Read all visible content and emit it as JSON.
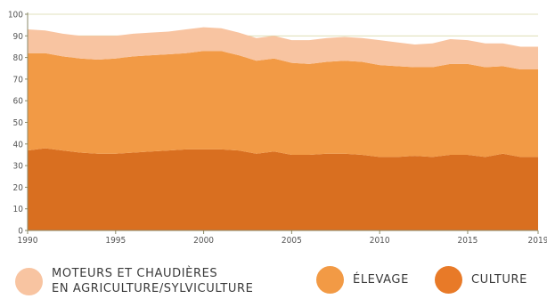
{
  "chart_data": {
    "type": "area",
    "stacked": true,
    "x": [
      1990,
      1991,
      1992,
      1993,
      1994,
      1995,
      1996,
      1997,
      1998,
      1999,
      2000,
      2001,
      2002,
      2003,
      2004,
      2005,
      2006,
      2007,
      2008,
      2009,
      2010,
      2011,
      2012,
      2013,
      2014,
      2015,
      2016,
      2017,
      2018,
      2019
    ],
    "xticks": [
      1990,
      1995,
      2000,
      2005,
      2010,
      2015,
      2019
    ],
    "yticks": [
      0,
      10,
      20,
      30,
      40,
      50,
      60,
      70,
      80,
      90,
      100
    ],
    "ylim": [
      0,
      100
    ],
    "xlim": [
      1990,
      2019
    ],
    "grid": "horizontal",
    "legend_position": "bottom",
    "series": [
      {
        "name": "CULTURE",
        "color": "#d96f20",
        "values": [
          37,
          38,
          37,
          36,
          35.5,
          35.5,
          36,
          36.5,
          37,
          37.5,
          37.5,
          37.5,
          37,
          35.5,
          36.5,
          35,
          35,
          35.5,
          35.5,
          35,
          34,
          34,
          34.5,
          34,
          35,
          35,
          34,
          35.5,
          34,
          34
        ]
      },
      {
        "name": "ÉLEVAGE",
        "color": "#f29a45",
        "values": [
          45,
          44,
          43.5,
          43.5,
          43.5,
          44,
          44.5,
          44.5,
          44.5,
          44.5,
          45.5,
          45.5,
          44,
          43,
          43,
          42.5,
          42,
          42.5,
          43,
          43,
          42.5,
          42,
          41,
          41.5,
          42,
          42,
          41.5,
          40.5,
          40.5,
          40.5
        ]
      },
      {
        "name": "MOTEURS ET CHAUDIÈRES EN AGRICULTURE/SYLVICULTURE",
        "color": "#f8c4a1",
        "values": [
          11,
          10.5,
          10.5,
          10.5,
          11,
          10.5,
          10.5,
          10.5,
          10.5,
          11,
          11,
          10.5,
          10.5,
          10.5,
          10.5,
          10.5,
          11,
          11,
          11,
          11,
          11.5,
          11,
          10.5,
          11,
          11.5,
          11,
          11,
          10.5,
          10.5,
          10.5
        ]
      }
    ]
  },
  "legend": {
    "moteurs_line1": "MOTEURS ET CHAUDIÈRES",
    "moteurs_line2": "EN AGRICULTURE/SYLVICULTURE",
    "elevage": "ÉLEVAGE",
    "culture": "CULTURE",
    "moteurs_color": "#f8c4a1",
    "elevage_color": "#f29a45",
    "culture_color": "#e87a28"
  }
}
